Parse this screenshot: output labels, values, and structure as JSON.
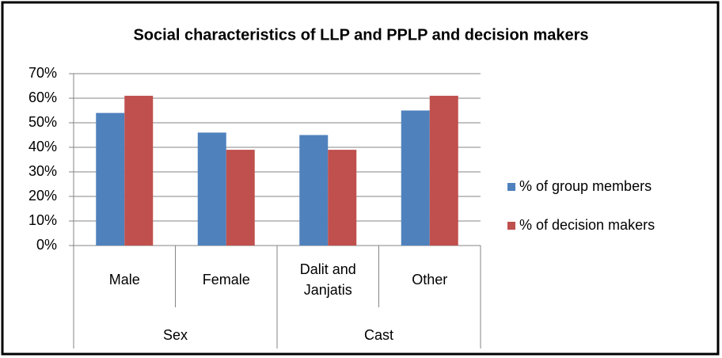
{
  "chart_data": {
    "type": "bar",
    "title": "Social characteristics of LLP and PPLP and decision makers",
    "categories": [
      "Male",
      "Female",
      "Dalit and Janjatis",
      "Other"
    ],
    "category_groups": [
      "Sex",
      "Sex",
      "Cast",
      "Cast"
    ],
    "series": [
      {
        "name": "% of group members",
        "color": "#4f81bd",
        "values": [
          54,
          46,
          45,
          55
        ]
      },
      {
        "name": "% of decision makers",
        "color": "#c0504d",
        "values": [
          61,
          39,
          39,
          61
        ]
      }
    ],
    "ylim": [
      0,
      70
    ],
    "yticks": [
      {
        "value": 0,
        "label": "0%"
      },
      {
        "value": 10,
        "label": "10%"
      },
      {
        "value": 20,
        "label": "20%"
      },
      {
        "value": 30,
        "label": "30%"
      },
      {
        "value": 40,
        "label": "40%"
      },
      {
        "value": 50,
        "label": "50%"
      },
      {
        "value": 60,
        "label": "60%"
      },
      {
        "value": 70,
        "label": "70%"
      }
    ],
    "grid": true,
    "legend": "right"
  }
}
